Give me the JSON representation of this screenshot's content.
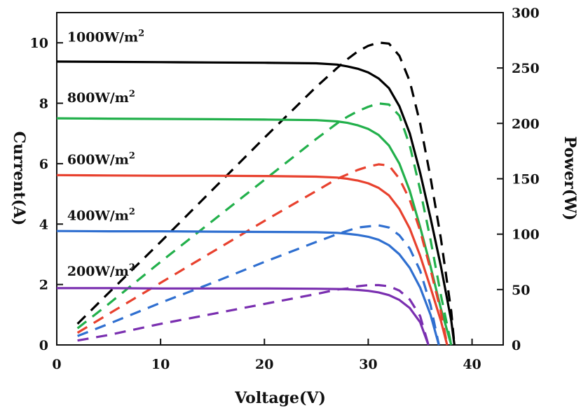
{
  "chart_data": {
    "type": "line",
    "title": "",
    "xlabel": "Voltage(V)",
    "ylabel_left": "Current(A)",
    "ylabel_right": "Power(W)",
    "xlim": [
      0,
      43
    ],
    "ylim_left": [
      0,
      11
    ],
    "ylim_right": [
      0,
      300
    ],
    "x_ticks": [
      0,
      10,
      20,
      30,
      40
    ],
    "y_left_ticks": [
      0,
      2,
      4,
      6,
      8,
      10
    ],
    "y_right_ticks": [
      0,
      50,
      100,
      150,
      200,
      250,
      300
    ],
    "grid": false,
    "legend": "none",
    "irradiance_labels": [
      {
        "base": "1000W/m",
        "sup": "2",
        "color": "#000000"
      },
      {
        "base": "800W/m",
        "sup": "2",
        "color": "#22b04b"
      },
      {
        "base": "600W/m",
        "sup": "2",
        "color": "#e8412e"
      },
      {
        "base": "400W/m",
        "sup": "2",
        "color": "#2f6fd0"
      },
      {
        "base": "200W/m",
        "sup": "2",
        "color": "#7a2fb0"
      }
    ],
    "series": [
      {
        "label_ref": 0,
        "color": "#000000",
        "axis": "left",
        "style": "solid",
        "x": [
          0,
          5,
          10,
          15,
          20,
          25,
          27,
          28,
          29,
          30,
          31,
          32,
          33,
          34,
          35,
          36,
          37,
          38,
          38.3
        ],
        "y": [
          9.38,
          9.37,
          9.36,
          9.35,
          9.34,
          9.32,
          9.28,
          9.22,
          9.14,
          9.02,
          8.82,
          8.5,
          7.9,
          7.0,
          5.7,
          4.2,
          2.6,
          0.8,
          0
        ]
      },
      {
        "label_ref": 0,
        "color": "#000000",
        "axis": "right",
        "style": "dashed",
        "x": [
          2,
          5,
          10,
          15,
          20,
          25,
          27,
          28,
          29,
          30,
          31,
          32,
          33,
          34,
          35,
          36,
          37,
          38,
          38.3
        ],
        "y": [
          19,
          47,
          93,
          140,
          187,
          233,
          250,
          258,
          265,
          270,
          273,
          272,
          261,
          238,
          200,
          151,
          96,
          30,
          0
        ]
      },
      {
        "label_ref": 1,
        "color": "#22b04b",
        "axis": "left",
        "style": "solid",
        "x": [
          0,
          5,
          10,
          15,
          20,
          25,
          27,
          28,
          29,
          30,
          31,
          32,
          33,
          34,
          35,
          36,
          37,
          38
        ],
        "y": [
          7.5,
          7.49,
          7.48,
          7.47,
          7.46,
          7.44,
          7.4,
          7.35,
          7.27,
          7.15,
          6.95,
          6.6,
          6.0,
          5.1,
          3.9,
          2.6,
          1.2,
          0
        ]
      },
      {
        "label_ref": 1,
        "color": "#22b04b",
        "axis": "right",
        "style": "dashed",
        "x": [
          2,
          5,
          10,
          15,
          20,
          25,
          27,
          28,
          29,
          30,
          31,
          32,
          33,
          34,
          35,
          36,
          37,
          38
        ],
        "y": [
          15,
          37,
          75,
          112,
          149,
          186,
          200,
          206,
          211,
          215,
          218,
          217,
          207,
          180,
          140,
          95,
          45,
          0
        ]
      },
      {
        "label_ref": 2,
        "color": "#e8412e",
        "axis": "left",
        "style": "solid",
        "x": [
          0,
          5,
          10,
          15,
          20,
          25,
          27,
          28,
          29,
          30,
          31,
          32,
          33,
          34,
          35,
          36,
          37,
          37.6
        ],
        "y": [
          5.62,
          5.61,
          5.6,
          5.6,
          5.59,
          5.57,
          5.54,
          5.5,
          5.44,
          5.35,
          5.2,
          4.95,
          4.5,
          3.85,
          2.95,
          1.9,
          0.8,
          0
        ]
      },
      {
        "label_ref": 2,
        "color": "#e8412e",
        "axis": "right",
        "style": "dashed",
        "x": [
          2,
          5,
          10,
          15,
          20,
          25,
          27,
          28,
          29,
          30,
          31,
          32,
          33,
          34,
          35,
          36,
          37,
          37.6
        ],
        "y": [
          11,
          28,
          56,
          84,
          112,
          139,
          150,
          154,
          158,
          161,
          163,
          162,
          150,
          131,
          103,
          68,
          30,
          0
        ]
      },
      {
        "label_ref": 3,
        "color": "#2f6fd0",
        "axis": "left",
        "style": "solid",
        "x": [
          0,
          5,
          10,
          15,
          20,
          25,
          27,
          28,
          29,
          30,
          31,
          32,
          33,
          34,
          35,
          36,
          36.8
        ],
        "y": [
          3.77,
          3.76,
          3.76,
          3.75,
          3.74,
          3.73,
          3.71,
          3.68,
          3.64,
          3.58,
          3.48,
          3.3,
          3.0,
          2.55,
          1.9,
          1.0,
          0
        ]
      },
      {
        "label_ref": 3,
        "color": "#2f6fd0",
        "axis": "right",
        "style": "dashed",
        "x": [
          2,
          5,
          10,
          15,
          20,
          25,
          27,
          28,
          29,
          30,
          31,
          32,
          33,
          34,
          35,
          36,
          36.8
        ],
        "y": [
          8,
          19,
          38,
          56,
          75,
          93,
          100,
          103,
          106,
          107,
          108,
          106,
          99,
          87,
          67,
          36,
          0
        ]
      },
      {
        "label_ref": 4,
        "color": "#7a2fb0",
        "axis": "left",
        "style": "solid",
        "x": [
          0,
          5,
          10,
          15,
          20,
          25,
          27,
          28,
          29,
          30,
          31,
          32,
          33,
          34,
          35,
          35.8
        ],
        "y": [
          1.88,
          1.88,
          1.87,
          1.87,
          1.87,
          1.86,
          1.85,
          1.84,
          1.82,
          1.79,
          1.74,
          1.65,
          1.49,
          1.22,
          0.75,
          0
        ]
      },
      {
        "label_ref": 4,
        "color": "#7a2fb0",
        "axis": "right",
        "style": "dashed",
        "x": [
          2,
          5,
          10,
          15,
          20,
          25,
          27,
          28,
          29,
          30,
          31,
          32,
          33,
          34,
          35,
          35.8
        ],
        "y": [
          4,
          9,
          19,
          28,
          37,
          46,
          50,
          51,
          53,
          54,
          54,
          53,
          49,
          41,
          26,
          0
        ]
      }
    ]
  }
}
